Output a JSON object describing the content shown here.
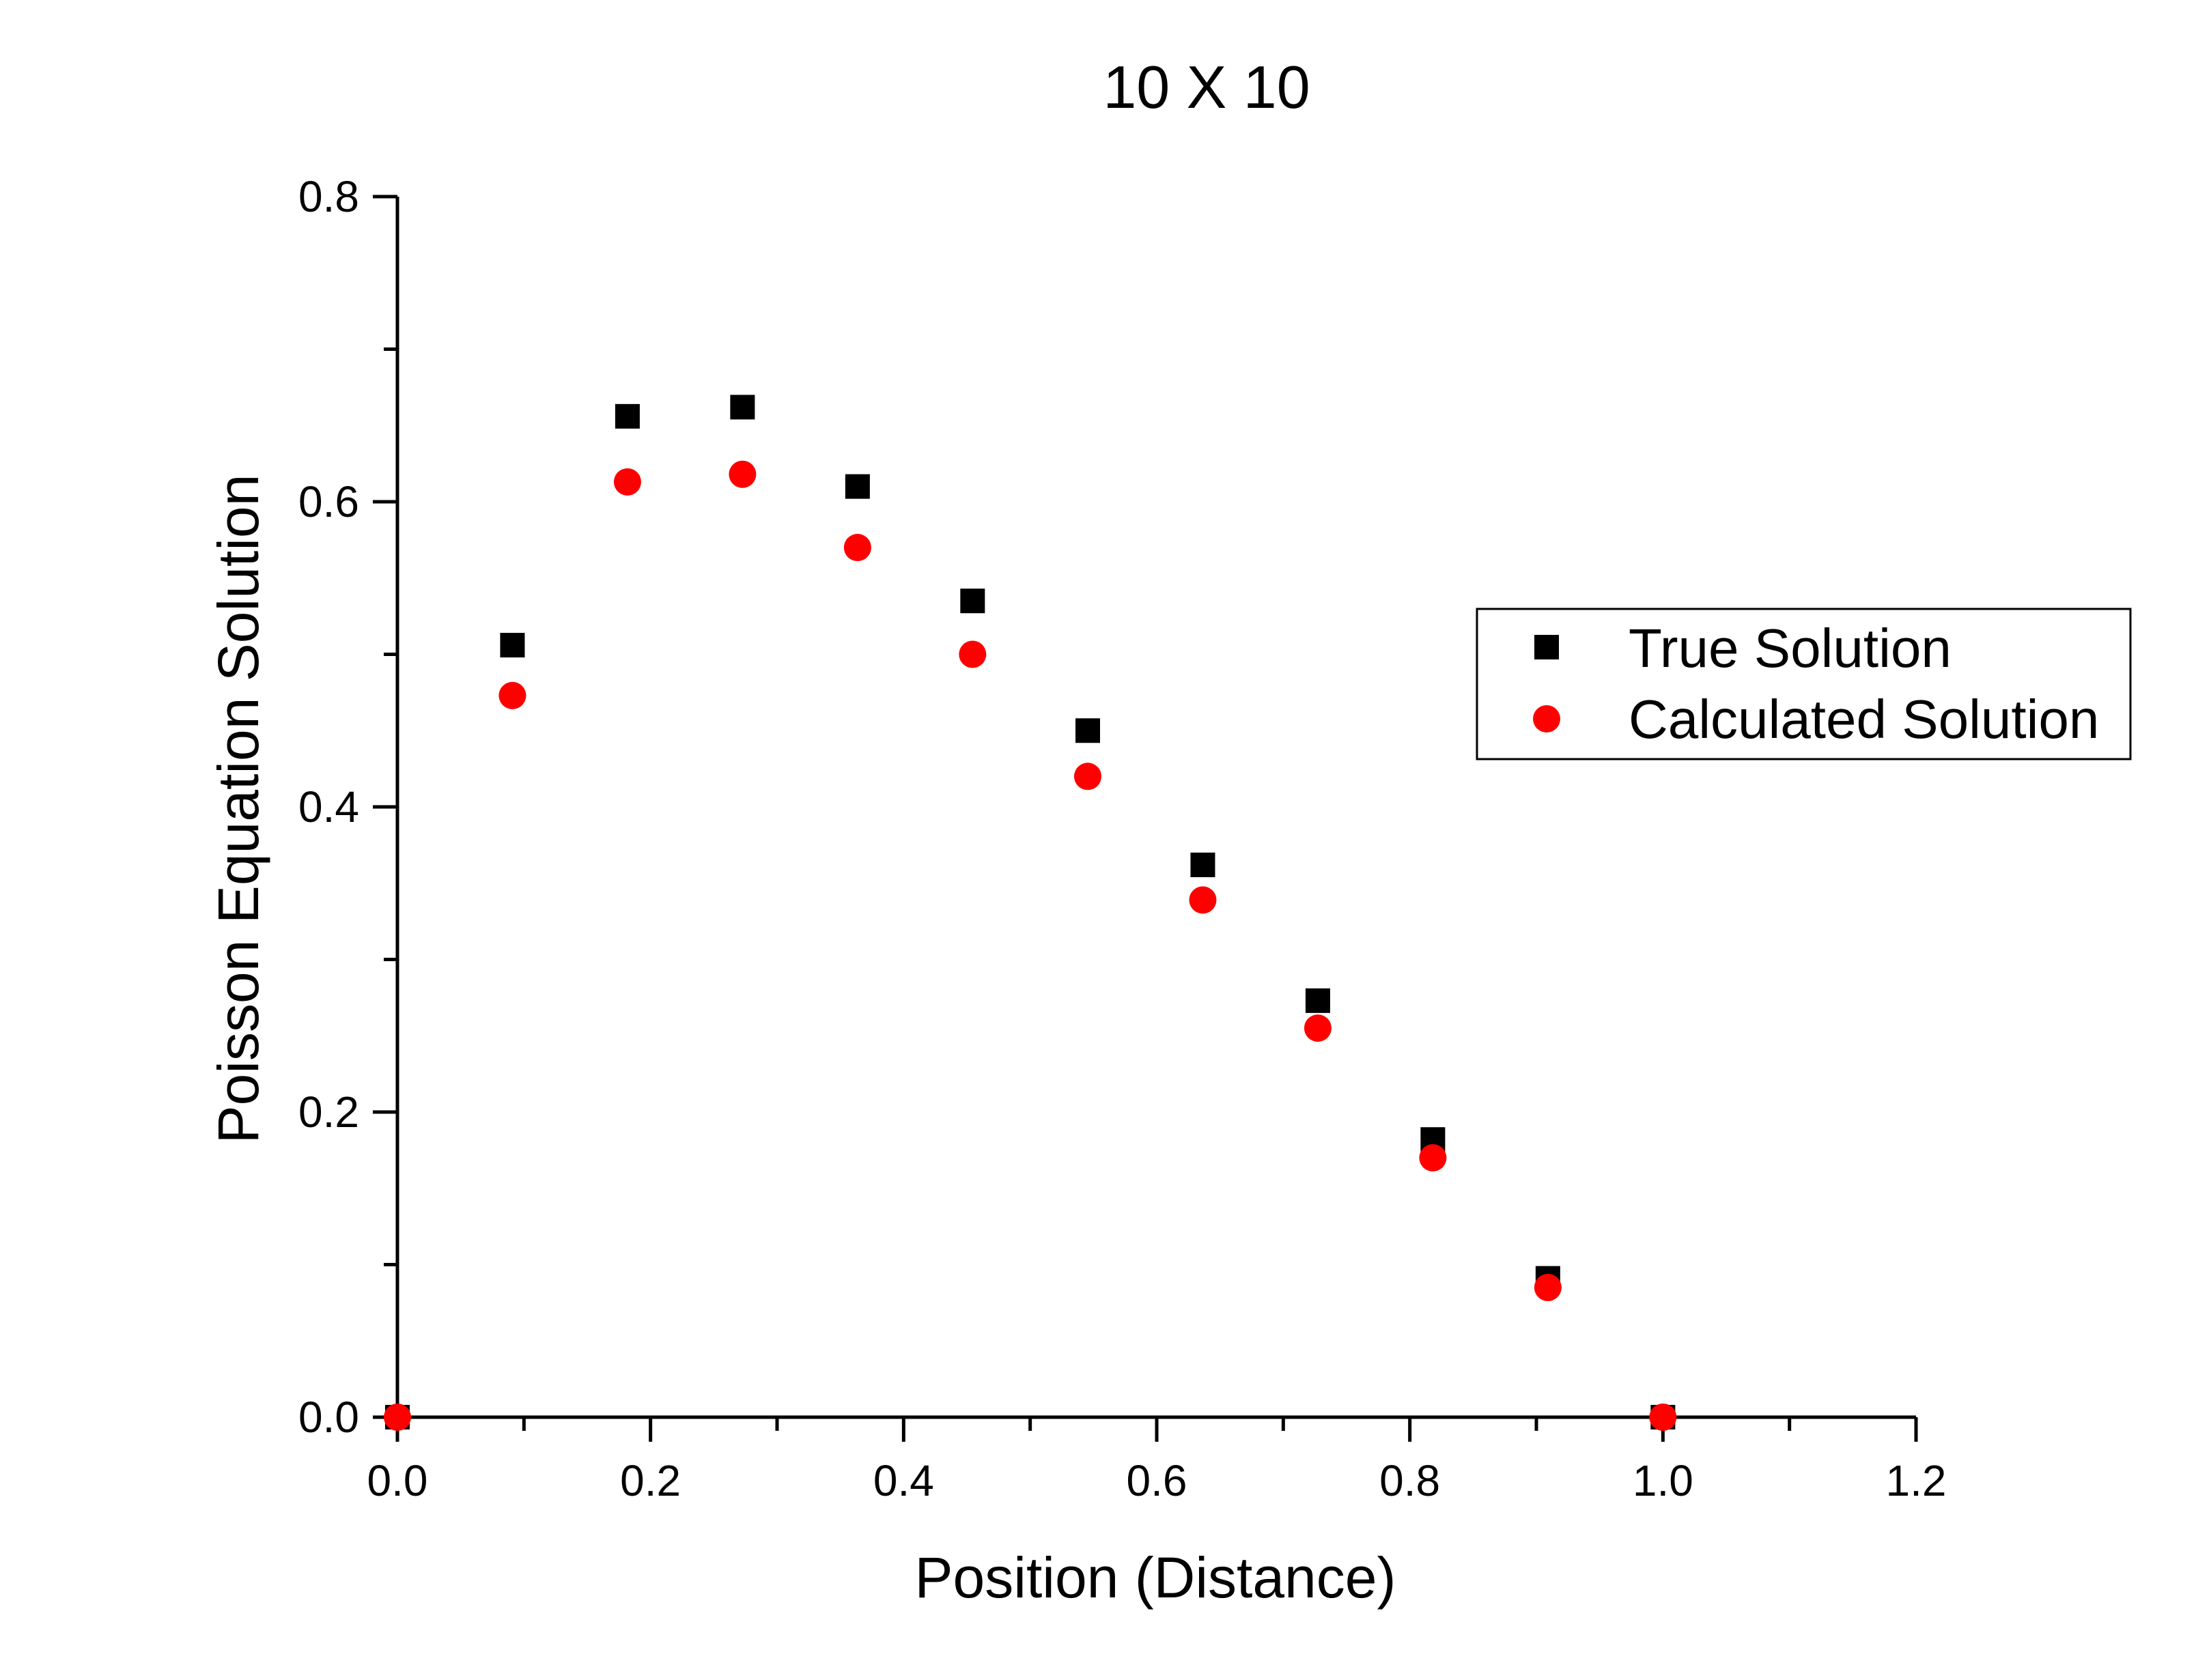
{
  "chart_data": {
    "type": "scatter",
    "title": "10 X 10",
    "xlabel": "Position (Distance)",
    "ylabel": "Poisson Equation Solution",
    "xlim": [
      0.0,
      1.2
    ],
    "ylim": [
      0.0,
      0.8
    ],
    "x_ticks": [
      "0.0",
      "0.2",
      "0.4",
      "0.6",
      "0.8",
      "1.0",
      "1.2"
    ],
    "y_ticks": [
      "0.0",
      "0.2",
      "0.4",
      "0.6",
      "0.8"
    ],
    "x_tick_values": [
      0.0,
      0.2,
      0.4,
      0.6,
      0.8,
      1.0,
      1.2
    ],
    "y_tick_values": [
      0.0,
      0.2,
      0.4,
      0.6,
      0.8
    ],
    "x_minor_step": 0.1,
    "y_minor_step": 0.1,
    "grid": false,
    "legend_position": "right",
    "series": [
      {
        "name": "True Solution",
        "marker": "square",
        "color": "#000000",
        "x": [
          0.0,
          0.0909,
          0.1818,
          0.2727,
          0.3636,
          0.4545,
          0.5455,
          0.6364,
          0.7273,
          0.8182,
          0.9091,
          1.0
        ],
        "y": [
          0.0,
          0.506,
          0.656,
          0.662,
          0.61,
          0.535,
          0.45,
          0.362,
          0.273,
          0.182,
          0.091,
          0.0
        ]
      },
      {
        "name": "Calculated Solution",
        "marker": "circle",
        "color": "#ff0000",
        "x": [
          0.0,
          0.0909,
          0.1818,
          0.2727,
          0.3636,
          0.4545,
          0.5455,
          0.6364,
          0.7273,
          0.8182,
          0.9091,
          1.0
        ],
        "y": [
          0.0,
          0.473,
          0.613,
          0.618,
          0.57,
          0.5,
          0.42,
          0.339,
          0.255,
          0.17,
          0.085,
          0.0
        ]
      }
    ]
  }
}
